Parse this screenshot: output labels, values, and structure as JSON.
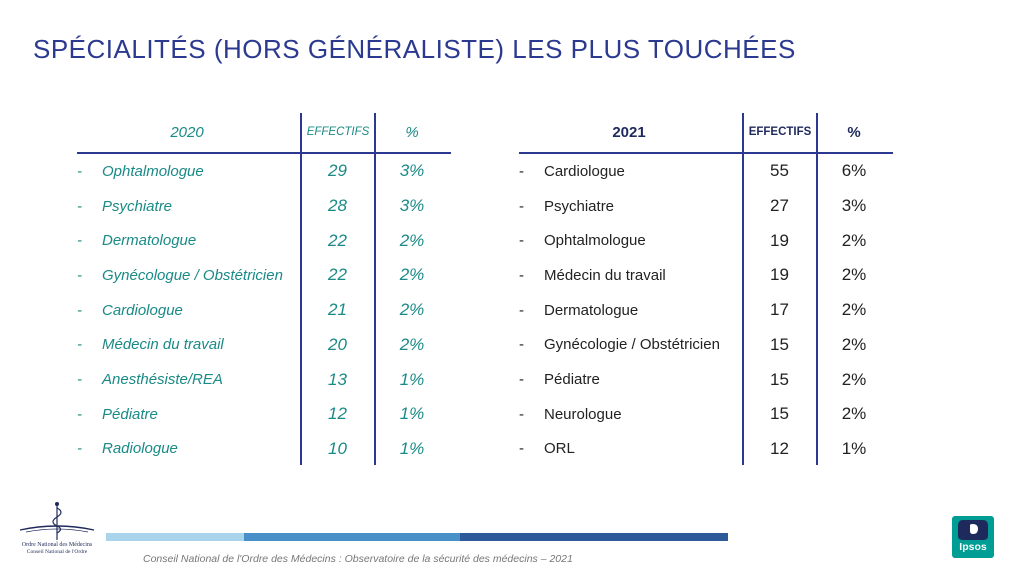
{
  "title": "SPÉCIALITÉS (HORS GÉNÉRALISTE) LES PLUS TOUCHÉES",
  "colors": {
    "title": "#2b3990",
    "left_text": "#1a8a86",
    "right_text": "#222222",
    "rule": "#2b3990"
  },
  "table_2020": {
    "year": "2020",
    "col_effectifs": "EFFECTIFS",
    "col_pct": "%",
    "rows": [
      {
        "dash": "-",
        "label": "Ophtalmologue",
        "effectifs": "29",
        "pct": "3%"
      },
      {
        "dash": "-",
        "label": "Psychiatre",
        "effectifs": "28",
        "pct": "3%"
      },
      {
        "dash": "-",
        "label": "Dermatologue",
        "effectifs": "22",
        "pct": "2%"
      },
      {
        "dash": "-",
        "label": "Gynécologue / Obstétricien",
        "effectifs": "22",
        "pct": "2%"
      },
      {
        "dash": "-",
        "label": "Cardiologue",
        "effectifs": "21",
        "pct": "2%"
      },
      {
        "dash": "-",
        "label": "Médecin du travail",
        "effectifs": "20",
        "pct": "2%"
      },
      {
        "dash": "-",
        "label": "Anesthésiste/REA",
        "effectifs": "13",
        "pct": "1%"
      },
      {
        "dash": "-",
        "label": "Pédiatre",
        "effectifs": "12",
        "pct": "1%"
      },
      {
        "dash": "-",
        "label": "Radiologue",
        "effectifs": "10",
        "pct": "1%"
      }
    ]
  },
  "table_2021": {
    "year": "2021",
    "col_effectifs": "EFFECTIFS",
    "col_pct": "%",
    "rows": [
      {
        "dash": "-",
        "label": "Cardiologue",
        "effectifs": "55",
        "pct": "6%"
      },
      {
        "dash": "-",
        "label": "Psychiatre",
        "effectifs": "27",
        "pct": "3%"
      },
      {
        "dash": "-",
        "label": "Ophtalmologue",
        "effectifs": "19",
        "pct": "2%"
      },
      {
        "dash": "-",
        "label": "Médecin du travail",
        "effectifs": "19",
        "pct": "2%"
      },
      {
        "dash": "-",
        "label": "Dermatologue",
        "effectifs": "17",
        "pct": "2%"
      },
      {
        "dash": "-",
        "label": "Gynécologie / Obstétricien",
        "effectifs": "15",
        "pct": "2%"
      },
      {
        "dash": "-",
        "label": "Pédiatre",
        "effectifs": "15",
        "pct": "2%"
      },
      {
        "dash": "-",
        "label": "Neurologue",
        "effectifs": "15",
        "pct": "2%"
      },
      {
        "dash": "-",
        "label": "ORL",
        "effectifs": "12",
        "pct": "1%"
      }
    ]
  },
  "footer": {
    "source": "Conseil National de l'Ordre des Médecins : Observatoire de la sécurité des médecins – 2021",
    "bar_colors": [
      "#a8d4ec",
      "#4a90c8",
      "#2d5b9a"
    ],
    "logo_left_line1": "Ordre National des Médecins",
    "logo_left_line2": "Conseil National de l'Ordre",
    "logo_right": "Ipsos",
    "logo_right_color": "#009d94"
  }
}
